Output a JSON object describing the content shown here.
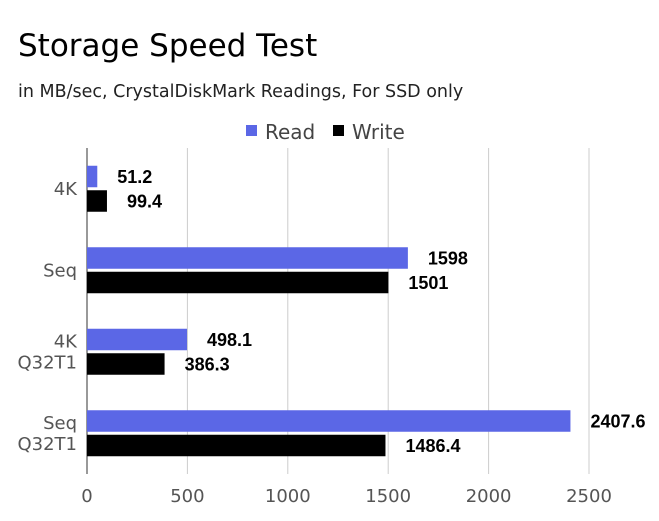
{
  "chart_data": {
    "type": "bar",
    "orientation": "horizontal",
    "title": "Storage Speed Test",
    "subtitle": "in MB/sec, CrystalDiskMark Readings, For SSD only",
    "categories": [
      [
        "4K"
      ],
      [
        "Seq"
      ],
      [
        "4K",
        "Q32T1"
      ],
      [
        "Seq",
        "Q32T1"
      ]
    ],
    "series": [
      {
        "name": "Read",
        "color": "#5b67e6",
        "values": [
          51.2,
          1598,
          498.1,
          2407.6
        ],
        "labels": [
          "51.2",
          "1598",
          "498.1",
          "2407.6"
        ]
      },
      {
        "name": "Write",
        "color": "#000000",
        "values": [
          99.4,
          1501,
          386.3,
          1486.4
        ],
        "labels": [
          "99.4",
          "1501",
          "386.3",
          "1486.4"
        ]
      }
    ],
    "xlim": [
      0,
      2500
    ],
    "xticks": [
      "0",
      "500",
      "1000",
      "1500",
      "2000",
      "2500"
    ],
    "grid": true,
    "legend": "top-center"
  }
}
